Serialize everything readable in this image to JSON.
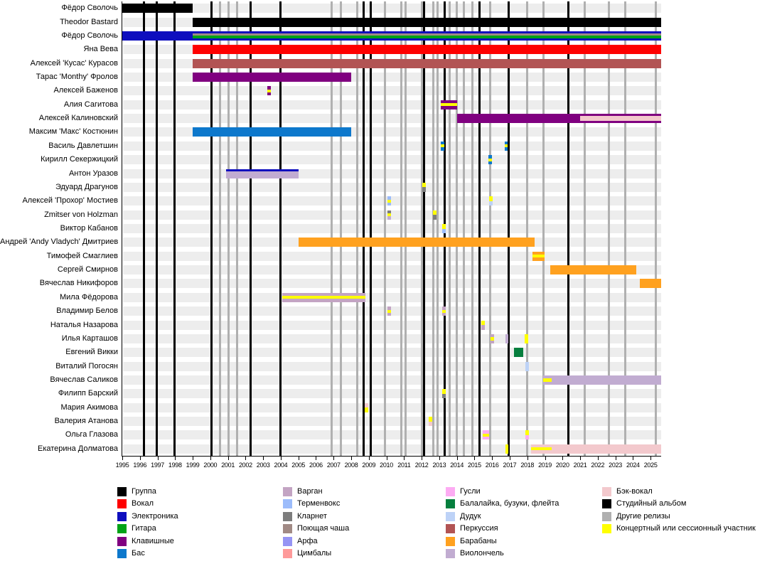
{
  "chart_data": {
    "type": "timeline",
    "title": "",
    "description": "Band members participation timeline (Gantt-style) with release lines",
    "x_axis": {
      "start": 1995,
      "end": 2025.6,
      "ticks": [
        1995,
        1996,
        1997,
        1998,
        1999,
        2000,
        2001,
        2002,
        2003,
        2004,
        2005,
        2006,
        2007,
        2008,
        2009,
        2010,
        2011,
        2012,
        2013,
        2014,
        2015,
        2016,
        2017,
        2018,
        2019,
        2020,
        2021,
        2022,
        2023,
        2024,
        2025
      ]
    },
    "colors": {
      "group": "#000000",
      "vocal": "#fe0000",
      "electronics": "#0e0ebe",
      "guitar": "#00a316",
      "keyboards": "#800080",
      "bass": "#0d78cc",
      "vargan": "#c3a4c3",
      "theremin": "#9cbcfb",
      "clarinet": "#7d7d7d",
      "singing_bowl": "#a18a85",
      "harp": "#9694f4",
      "cymbals": "#fe9a9a",
      "gusli": "#fdabf3",
      "balalaika": "#067f3e",
      "duduk": "#bdd2f7",
      "percussion": "#b25454",
      "drums": "#ffa11f",
      "cello": "#c1acd1",
      "backing_vocals": "#f3c9cd",
      "studio_album": "#000000",
      "other_release": "#b0b0b0",
      "live": "#ffff00"
    },
    "legend_columns": [
      [
        {
          "label": "Группа",
          "color": "group"
        },
        {
          "label": "Вокал",
          "color": "vocal"
        },
        {
          "label": "Электроника",
          "color": "electronics"
        },
        {
          "label": "Гитара",
          "color": "guitar"
        },
        {
          "label": "Клавишные",
          "color": "keyboards"
        },
        {
          "label": "Бас",
          "color": "bass"
        }
      ],
      [
        {
          "label": "Варган",
          "color": "vargan"
        },
        {
          "label": "Терменвокс",
          "color": "theremin"
        },
        {
          "label": "Кларнет",
          "color": "clarinet"
        },
        {
          "label": "Поющая чаша",
          "color": "singing_bowl"
        },
        {
          "label": "Арфа",
          "color": "harp"
        },
        {
          "label": "Цимбалы",
          "color": "cymbals"
        }
      ],
      [
        {
          "label": "Гусли",
          "color": "gusli"
        },
        {
          "label": "Балалайка, бузуки, флейта",
          "color": "balalaika"
        },
        {
          "label": "Дудук",
          "color": "duduk"
        },
        {
          "label": "Перкуссия",
          "color": "percussion"
        },
        {
          "label": "Барабаны",
          "color": "drums"
        },
        {
          "label": "Виолончель",
          "color": "cello"
        }
      ],
      [
        {
          "label": "Бэк-вокал",
          "color": "backing_vocals"
        },
        {
          "label": "Студийный альбом",
          "color": "studio_album"
        },
        {
          "label": "Другие релизы",
          "color": "other_release"
        },
        {
          "label": "Концертный или сессионный участник",
          "color": "live"
        }
      ]
    ],
    "release_lines": {
      "studio": [
        1996.25,
        1996.95,
        1997.95,
        2000.05,
        2002.3,
        2004.0,
        2008.7,
        2009.1,
        2012.15,
        2013.3,
        2015.3,
        2016.95,
        2020.35
      ],
      "other": [
        2000.55,
        2001.05,
        2001.5,
        2006.9,
        2007.4,
        2008.35,
        2009.9,
        2010.85,
        2011.1,
        2012.0,
        2012.65,
        2012.9,
        2013.6,
        2014.0,
        2014.4,
        2014.9,
        2015.9,
        2018.0,
        2018.9,
        2021.25,
        2022.65,
        2023.55,
        2025.3
      ]
    },
    "rows": [
      {
        "label": "Фёдор Сволочь",
        "bars": [
          {
            "from": 1995.0,
            "to": 1999.0,
            "layers": [
              "group"
            ]
          }
        ]
      },
      {
        "label": "Theodor Bastard",
        "bars": [
          {
            "from": 1999.0,
            "to": 2025.6,
            "layers": [
              "group"
            ]
          }
        ]
      },
      {
        "label": "Фёдор Сволочь",
        "bars": [
          {
            "from": 1995.0,
            "to": 1999.0,
            "layers": [
              "electronics"
            ]
          },
          {
            "from": 1999.0,
            "to": 2025.6,
            "layers": [
              "electronics",
              "singing_bowl",
              "guitar",
              "electronics"
            ]
          }
        ]
      },
      {
        "label": "Яна Вева",
        "bars": [
          {
            "from": 1999.0,
            "to": 2025.6,
            "layers": [
              "vocal"
            ]
          }
        ]
      },
      {
        "label": "Алексей 'Кусас' Курасов",
        "bars": [
          {
            "from": 1999.0,
            "to": 2025.6,
            "layers": [
              "percussion"
            ]
          }
        ]
      },
      {
        "label": "Тарас 'Monthy' Фролов",
        "bars": [
          {
            "from": 1999.0,
            "to": 2008.0,
            "layers": [
              "keyboards"
            ]
          }
        ]
      },
      {
        "label": "Алексей Баженов",
        "bars": [
          {
            "from": 2003.25,
            "to": 2003.45,
            "layers": [
              "keyboards",
              "live",
              "keyboards"
            ]
          }
        ]
      },
      {
        "label": "Алия Сагитова",
        "bars": [
          {
            "from": 2013.1,
            "to": 2014.0,
            "layers": [
              "keyboards",
              "live",
              "keyboards"
            ]
          }
        ]
      },
      {
        "label": "Алексей Калиновский",
        "bars": [
          {
            "from": 2014.0,
            "to": 2021.0,
            "layers": [
              "keyboards"
            ]
          },
          {
            "from": 2021.0,
            "to": 2025.6,
            "layers": [
              "keyboards",
              "backing_vocals",
              "backing_vocals",
              "keyboards"
            ]
          }
        ]
      },
      {
        "label": "Максим 'Макс' Костюнин",
        "bars": [
          {
            "from": 1999.0,
            "to": 2008.0,
            "layers": [
              "bass"
            ]
          }
        ]
      },
      {
        "label": "Василь Давлетшин",
        "bars": [
          {
            "from": 2013.1,
            "to": 2013.3,
            "layers": [
              "bass",
              "live",
              "bass"
            ]
          },
          {
            "from": 2016.7,
            "to": 2016.9,
            "layers": [
              "bass",
              "live",
              "bass"
            ]
          }
        ]
      },
      {
        "label": "Кирилл Секержицкий",
        "bars": [
          {
            "from": 2015.8,
            "to": 2016.0,
            "layers": [
              "bass",
              "live",
              "bass"
            ]
          }
        ]
      },
      {
        "label": "Антон Уразов",
        "bars": [
          {
            "from": 2000.9,
            "to": 2005.0,
            "layers": [
              "electronics",
              "cello",
              "cello",
              "cello"
            ]
          }
        ]
      },
      {
        "label": "Эдуард Драгунов",
        "bars": [
          {
            "from": 2012.05,
            "to": 2012.25,
            "layers": [
              "live",
              "clarinet"
            ]
          }
        ]
      },
      {
        "label": "Алексей 'Прохор' Мостиев",
        "bars": [
          {
            "from": 2010.05,
            "to": 2010.25,
            "layers": [
              "theremin",
              "live",
              "theremin"
            ]
          },
          {
            "from": 2015.85,
            "to": 2016.05,
            "layers": [
              "live",
              "duduk"
            ]
          }
        ]
      },
      {
        "label": "Zmitser von Holzman",
        "bars": [
          {
            "from": 2010.05,
            "to": 2010.25,
            "layers": [
              "clarinet",
              "live",
              "cello"
            ]
          },
          {
            "from": 2012.65,
            "to": 2012.85,
            "layers": [
              "live",
              "clarinet"
            ]
          }
        ]
      },
      {
        "label": "Виктор Кабанов",
        "bars": [
          {
            "from": 2013.15,
            "to": 2013.35,
            "layers": [
              "live",
              "theremin"
            ]
          }
        ]
      },
      {
        "label": "Андрей 'Andy Vladych' Дмитриев",
        "bars": [
          {
            "from": 2005.0,
            "to": 2018.4,
            "layers": [
              "drums"
            ]
          }
        ]
      },
      {
        "label": "Тимофей Смаглиев",
        "bars": [
          {
            "from": 2018.3,
            "to": 2019.0,
            "layers": [
              "drums",
              "live",
              "drums"
            ]
          }
        ]
      },
      {
        "label": "Сергей Смирнов",
        "bars": [
          {
            "from": 2019.3,
            "to": 2024.2,
            "layers": [
              "drums"
            ]
          }
        ]
      },
      {
        "label": "Вячеслав Никифоров",
        "bars": [
          {
            "from": 2024.4,
            "to": 2025.6,
            "layers": [
              "drums"
            ]
          }
        ]
      },
      {
        "label": "Мила Фёдорова",
        "bars": [
          {
            "from": 2004.1,
            "to": 2008.8,
            "layers": [
              "vargan",
              "live",
              "vargan"
            ]
          }
        ]
      },
      {
        "label": "Владимир Белов",
        "bars": [
          {
            "from": 2010.05,
            "to": 2010.25,
            "layers": [
              "vargan",
              "live",
              "vargan"
            ]
          },
          {
            "from": 2013.15,
            "to": 2013.35,
            "layers": [
              "vargan",
              "live",
              "vargan"
            ]
          }
        ]
      },
      {
        "label": "Наталья Назарова",
        "bars": [
          {
            "from": 2015.4,
            "to": 2015.6,
            "layers": [
              "live",
              "vargan"
            ]
          }
        ]
      },
      {
        "label": "Илья Карташов",
        "bars": [
          {
            "from": 2015.9,
            "to": 2016.1,
            "layers": [
              "vargan",
              "live",
              "vargan"
            ]
          },
          {
            "from": 2016.75,
            "to": 2016.9,
            "layers": [
              "cello"
            ]
          },
          {
            "from": 2017.85,
            "to": 2018.05,
            "layers": [
              "live"
            ]
          }
        ]
      },
      {
        "label": "Евгений Викки",
        "bars": [
          {
            "from": 2017.25,
            "to": 2017.75,
            "layers": [
              "balalaika"
            ]
          }
        ]
      },
      {
        "label": "Виталий Погосян",
        "bars": [
          {
            "from": 2017.9,
            "to": 2018.1,
            "layers": [
              "duduk"
            ]
          }
        ]
      },
      {
        "label": "Вячеслав Саликов",
        "bars": [
          {
            "from": 2018.9,
            "to": 2019.4,
            "layers": [
              "cello",
              "live",
              "cello"
            ]
          },
          {
            "from": 2019.4,
            "to": 2025.6,
            "layers": [
              "cello"
            ]
          }
        ]
      },
      {
        "label": "Филипп Барский",
        "bars": [
          {
            "from": 2013.15,
            "to": 2013.35,
            "layers": [
              "live",
              "clarinet"
            ]
          }
        ]
      },
      {
        "label": "Мария Акимова",
        "bars": [
          {
            "from": 2008.75,
            "to": 2008.95,
            "layers": [
              "backing_vocals",
              "live"
            ]
          }
        ]
      },
      {
        "label": "Валерия Атанова",
        "bars": [
          {
            "from": 2012.4,
            "to": 2012.6,
            "layers": [
              "live",
              "backing_vocals"
            ]
          }
        ]
      },
      {
        "label": "Ольга Глазова",
        "bars": [
          {
            "from": 2015.45,
            "to": 2015.85,
            "layers": [
              "gusli",
              "live",
              "gusli"
            ]
          },
          {
            "from": 2017.9,
            "to": 2018.1,
            "layers": [
              "live",
              "gusli"
            ]
          }
        ]
      },
      {
        "label": "Екатерина Долматова",
        "bars": [
          {
            "from": 2016.75,
            "to": 2016.85,
            "layers": [
              "live"
            ]
          },
          {
            "from": 2018.2,
            "to": 2019.4,
            "layers": [
              "backing_vocals",
              "live",
              "backing_vocals"
            ]
          },
          {
            "from": 2019.4,
            "to": 2025.6,
            "layers": [
              "backing_vocals"
            ]
          }
        ]
      }
    ]
  }
}
